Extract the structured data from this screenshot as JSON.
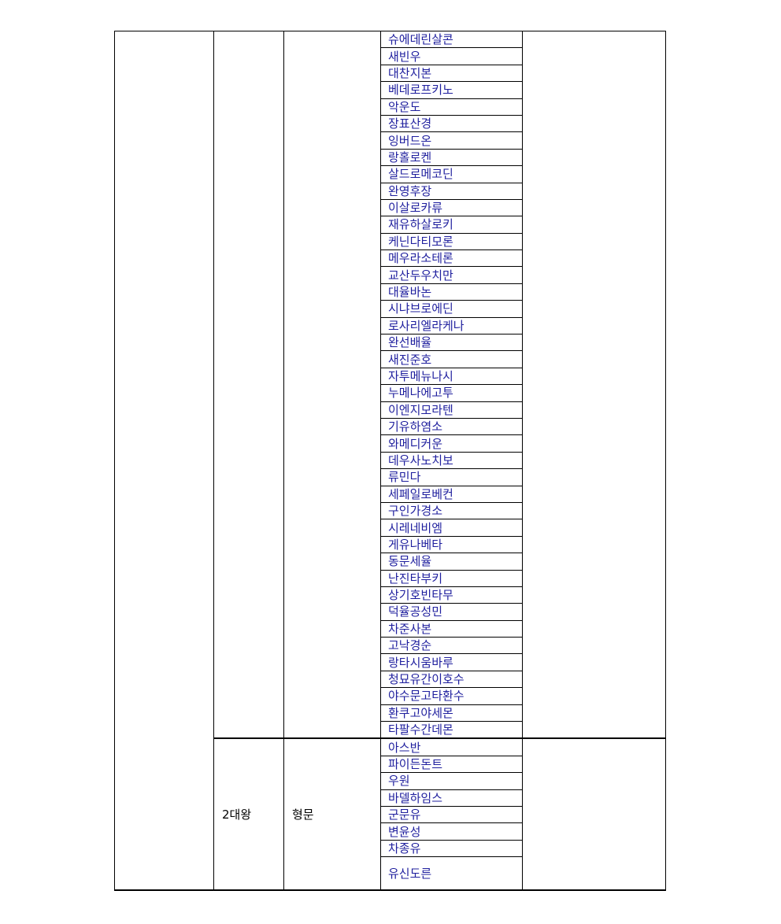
{
  "groups": [
    {
      "col2": "",
      "col3": "",
      "names": [
        "슈에데린살콘",
        "새빈우",
        "대찬지본",
        "베데로프키노",
        "악운도",
        "장표산경",
        "잉버드온",
        "랑홀로켄",
        "살드로메코딘",
        "완영후장",
        "이살로카류",
        "재유하살로키",
        "케닌다티모론",
        "메우라소테론",
        "교산두우치만",
        "대율바논",
        "시냐브로에딘",
        "로사리엘라케나",
        "완선배율",
        "새진준호",
        "자투메뉴나시",
        "누메나에고투",
        "이엔지모라텐",
        "기유하염소",
        "와메디커운",
        "데우사노치보",
        "류민다",
        "세페일로베컨",
        "구인가경소",
        "시레네비엠",
        "게유나베타",
        "동문세율",
        "난진타부키",
        "상기호빈타무",
        "덕율공성민",
        "차준사본",
        "고낙경순",
        "랑타시움바루",
        "청묘유간이호수",
        "야수문고타환수",
        "환쿠고야세몬",
        "타팔수간데몬"
      ]
    },
    {
      "col2": "2대왕",
      "col3": "형문",
      "names": [
        "아스반",
        "파이든돈트",
        "우원",
        "바델하임스",
        "군문유",
        "변윤성",
        "차종유",
        "유신도른"
      ]
    }
  ],
  "colors": {
    "name_text": "#1f1f9e",
    "label_text": "#000000",
    "border": "#000000"
  }
}
